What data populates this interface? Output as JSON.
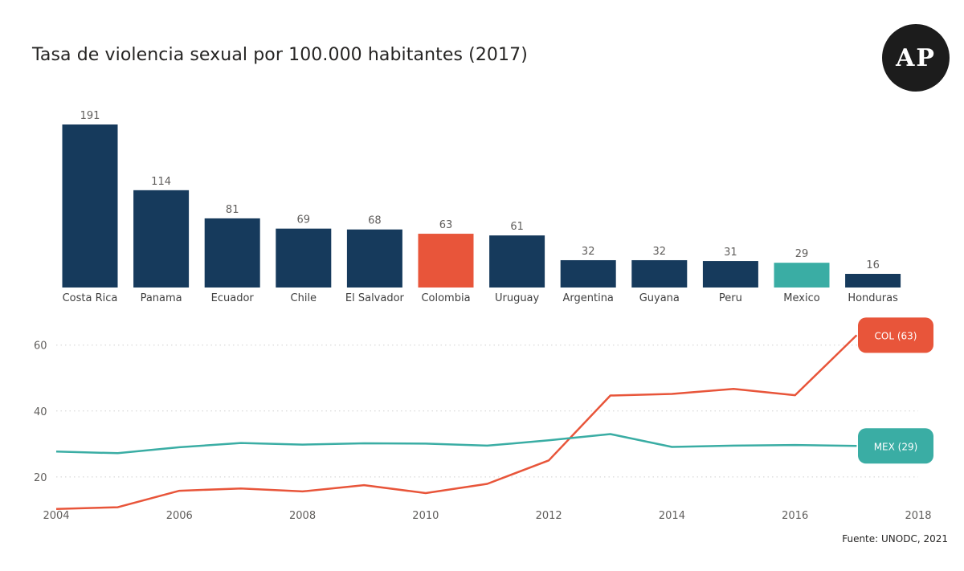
{
  "title": "Tasa de violencia sexual por 100.000 habitantes (2017)",
  "logo_text": "AP",
  "source": "Fuente: UNODC, 2021",
  "colors": {
    "navy": "#163a5c",
    "colombia": "#e8553a",
    "mexico": "#3aada4",
    "grid": "#d0d0d0",
    "text": "#605e5c"
  },
  "chart_data": [
    {
      "type": "bar",
      "title": "Tasa de violencia sexual por 100.000 habitantes (2017)",
      "categories": [
        "Costa Rica",
        "Panama",
        "Ecuador",
        "Chile",
        "El Salvador",
        "Colombia",
        "Uruguay",
        "Argentina",
        "Guyana",
        "Peru",
        "Mexico",
        "Honduras"
      ],
      "values": [
        191,
        114,
        81,
        69,
        68,
        63,
        61,
        32,
        32,
        31,
        29,
        16
      ],
      "highlight": {
        "Colombia": "#e8553a",
        "Mexico": "#3aada4"
      },
      "default_color": "#163a5c",
      "data_labels": true,
      "ylim": [
        0,
        191
      ]
    },
    {
      "type": "line",
      "x": [
        2004,
        2005,
        2006,
        2007,
        2008,
        2009,
        2010,
        2011,
        2012,
        2013,
        2014,
        2015,
        2016,
        2017
      ],
      "xticks": [
        2004,
        2006,
        2008,
        2010,
        2012,
        2014,
        2016,
        2018
      ],
      "yticks": [
        20,
        40,
        60
      ],
      "xlim": [
        2004,
        2018
      ],
      "ylim": [
        9,
        67
      ],
      "grid": true,
      "series": [
        {
          "name": "COL",
          "end_label": "COL (63)",
          "color": "#e8553a",
          "values": [
            10.3,
            10.8,
            15.8,
            16.5,
            15.6,
            17.5,
            15.1,
            17.9,
            25.0,
            44.7,
            45.2,
            46.7,
            44.8,
            63.0
          ]
        },
        {
          "name": "MEX",
          "end_label": "MEX (29)",
          "color": "#3aada4",
          "values": [
            27.7,
            27.2,
            29.0,
            30.3,
            29.8,
            30.2,
            30.1,
            29.5,
            31.1,
            33.0,
            29.1,
            29.5,
            29.7,
            29.4
          ]
        }
      ]
    }
  ]
}
